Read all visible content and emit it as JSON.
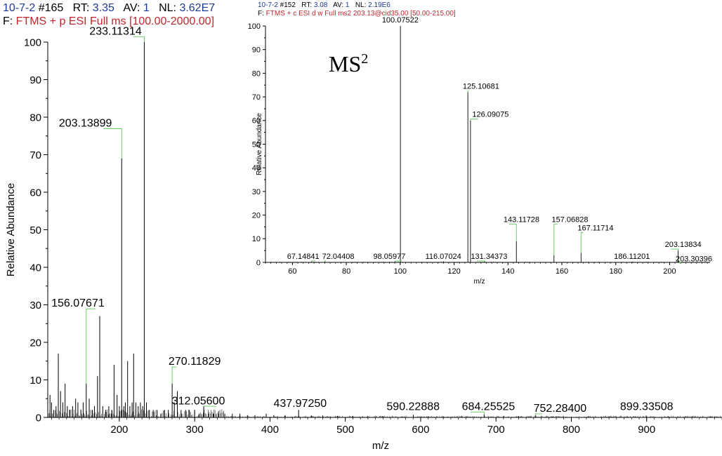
{
  "chart_data": [
    {
      "type": "bar",
      "header": {
        "line1": [
          {
            "text": "10-7-2",
            "color": "#1f3a93"
          },
          {
            "text": " #165",
            "color": "#000000"
          },
          {
            "text": "   RT: ",
            "color": "#000000"
          },
          {
            "text": "3.35",
            "color": "#1f3a93"
          },
          {
            "text": "   AV: ",
            "color": "#000000"
          },
          {
            "text": "1",
            "color": "#1f3a93"
          },
          {
            "text": "   NL: ",
            "color": "#000000"
          },
          {
            "text": "3.62E7",
            "color": "#1f3a93"
          }
        ],
        "line2_prefix": "F: ",
        "line2_rest": "FTMS + p ESI Full ms [100.00-2000.00]",
        "accent": "#c0272d"
      },
      "xlabel": "m/z",
      "ylabel": "Relative Abundance",
      "xlim": [
        105,
        1000
      ],
      "ylim": [
        0,
        100
      ],
      "xticks": [
        200,
        300,
        400,
        500,
        600,
        700,
        800,
        900
      ],
      "yticks": [
        0,
        10,
        20,
        30,
        40,
        50,
        60,
        70,
        80,
        90,
        100
      ],
      "peaks": [
        {
          "x": 108,
          "y": 6
        },
        {
          "x": 110,
          "y": 4
        },
        {
          "x": 113,
          "y": 2
        },
        {
          "x": 116,
          "y": 3
        },
        {
          "x": 119,
          "y": 17
        },
        {
          "x": 122,
          "y": 7
        },
        {
          "x": 125,
          "y": 4
        },
        {
          "x": 128,
          "y": 9
        },
        {
          "x": 131,
          "y": 3
        },
        {
          "x": 134,
          "y": 2
        },
        {
          "x": 138,
          "y": 3
        },
        {
          "x": 142,
          "y": 5
        },
        {
          "x": 145,
          "y": 4
        },
        {
          "x": 149,
          "y": 2
        },
        {
          "x": 152,
          "y": 4
        },
        {
          "x": 156.08,
          "y": 9
        },
        {
          "x": 160,
          "y": 5
        },
        {
          "x": 164,
          "y": 2
        },
        {
          "x": 167,
          "y": 3
        },
        {
          "x": 171,
          "y": 11
        },
        {
          "x": 174,
          "y": 27
        },
        {
          "x": 178,
          "y": 3
        },
        {
          "x": 182,
          "y": 2
        },
        {
          "x": 186,
          "y": 3
        },
        {
          "x": 190,
          "y": 2
        },
        {
          "x": 193,
          "y": 14
        },
        {
          "x": 197,
          "y": 6
        },
        {
          "x": 200,
          "y": 3
        },
        {
          "x": 203.14,
          "y": 69
        },
        {
          "x": 206,
          "y": 3
        },
        {
          "x": 208,
          "y": 4
        },
        {
          "x": 211,
          "y": 15
        },
        {
          "x": 214,
          "y": 3
        },
        {
          "x": 217,
          "y": 4
        },
        {
          "x": 219,
          "y": 17
        },
        {
          "x": 222,
          "y": 4
        },
        {
          "x": 225,
          "y": 3
        },
        {
          "x": 228,
          "y": 4
        },
        {
          "x": 231,
          "y": 3
        },
        {
          "x": 233.11,
          "y": 100
        },
        {
          "x": 236,
          "y": 4
        },
        {
          "x": 240,
          "y": 2
        },
        {
          "x": 245,
          "y": 2
        },
        {
          "x": 250,
          "y": 2
        },
        {
          "x": 255,
          "y": 1
        },
        {
          "x": 260,
          "y": 2
        },
        {
          "x": 265,
          "y": 2
        },
        {
          "x": 270.12,
          "y": 9
        },
        {
          "x": 273,
          "y": 4
        },
        {
          "x": 277,
          "y": 7
        },
        {
          "x": 282,
          "y": 2
        },
        {
          "x": 288,
          "y": 2
        },
        {
          "x": 293,
          "y": 2
        },
        {
          "x": 300,
          "y": 2
        },
        {
          "x": 306,
          "y": 1
        },
        {
          "x": 312.06,
          "y": 3
        },
        {
          "x": 318,
          "y": 1
        },
        {
          "x": 325,
          "y": 1
        },
        {
          "x": 332,
          "y": 1
        },
        {
          "x": 340,
          "y": 1
        },
        {
          "x": 350,
          "y": 1
        },
        {
          "x": 360,
          "y": 1
        },
        {
          "x": 370,
          "y": 0.6
        },
        {
          "x": 380,
          "y": 0.6
        },
        {
          "x": 395,
          "y": 1
        },
        {
          "x": 405,
          "y": 0.6
        },
        {
          "x": 420,
          "y": 0.6
        },
        {
          "x": 437.97,
          "y": 2
        },
        {
          "x": 455,
          "y": 0.5
        },
        {
          "x": 470,
          "y": 0.5
        },
        {
          "x": 490,
          "y": 0.4
        },
        {
          "x": 510,
          "y": 0.4
        },
        {
          "x": 530,
          "y": 0.4
        },
        {
          "x": 550,
          "y": 0.3
        },
        {
          "x": 575,
          "y": 0.3
        },
        {
          "x": 590.23,
          "y": 0.7
        },
        {
          "x": 610,
          "y": 0.3
        },
        {
          "x": 630,
          "y": 0.3
        },
        {
          "x": 655,
          "y": 0.3
        },
        {
          "x": 684.26,
          "y": 0.8
        },
        {
          "x": 710,
          "y": 0.3
        },
        {
          "x": 730,
          "y": 0.3
        },
        {
          "x": 752.28,
          "y": 0.6
        },
        {
          "x": 775,
          "y": 0.2
        },
        {
          "x": 800,
          "y": 0.2
        },
        {
          "x": 822,
          "y": 0.3
        },
        {
          "x": 850,
          "y": 0.2
        },
        {
          "x": 875,
          "y": 0.2
        },
        {
          "x": 899.34,
          "y": 0.5
        },
        {
          "x": 930,
          "y": 0.2
        },
        {
          "x": 960,
          "y": 0.2
        },
        {
          "x": 985,
          "y": 0.2
        }
      ],
      "annotations": [
        {
          "text": "233.11314",
          "x": 233.11,
          "y": 100,
          "label_x": 195,
          "label_y": 102
        },
        {
          "text": "203.13899",
          "x": 203.14,
          "y": 69,
          "label_x": 155,
          "label_y": 77.5
        },
        {
          "text": "156.07671",
          "x": 156.08,
          "y": 9,
          "label_x": 145,
          "label_y": 29.5
        },
        {
          "text": "270.11829",
          "x": 270.12,
          "y": 9,
          "label_x": 300,
          "label_y": 14
        },
        {
          "text": "312.05600",
          "x": 312.06,
          "y": 3,
          "label_x": 305,
          "label_y": 3.5
        },
        {
          "text": "437.97250",
          "x": 437.97,
          "y": 2,
          "label_x": 440,
          "label_y": 2.8
        },
        {
          "text": "590.22888",
          "x": 590.23,
          "y": 0.7,
          "label_x": 590,
          "label_y": 2
        },
        {
          "text": "684.25525",
          "x": 684.26,
          "y": 0.8,
          "label_x": 690,
          "label_y": 2
        },
        {
          "text": "752.28400",
          "x": 752.28,
          "y": 0.6,
          "label_x": 785,
          "label_y": 1.5
        },
        {
          "text": "899.33508",
          "x": 899.34,
          "y": 0.5,
          "label_x": 900,
          "label_y": 2
        }
      ]
    },
    {
      "type": "bar",
      "header": {
        "line1": [
          {
            "text": "10-7-2",
            "color": "#1f3a93"
          },
          {
            "text": " #152",
            "color": "#000000"
          },
          {
            "text": "   RT: ",
            "color": "#000000"
          },
          {
            "text": "3.08",
            "color": "#1f3a93"
          },
          {
            "text": "   AV: ",
            "color": "#000000"
          },
          {
            "text": "1",
            "color": "#1f3a93"
          },
          {
            "text": "   NL: ",
            "color": "#000000"
          },
          {
            "text": "2.19E6",
            "color": "#1f3a93"
          }
        ],
        "line2_prefix": "F: ",
        "line2_rest": "FTMS + c ESI d w Full ms2 203.13@cid35.00 [50.00-215.00]",
        "accent": "#c0272d"
      },
      "title_main": "MS",
      "title_sup": "2",
      "xlabel": "m/z",
      "ylabel": "Relative Abundance",
      "xlim": [
        50,
        215
      ],
      "ylim": [
        0,
        100
      ],
      "xticks": [
        60,
        80,
        100,
        120,
        140,
        160,
        180,
        200
      ],
      "yticks": [
        0,
        10,
        20,
        30,
        40,
        50,
        60,
        70,
        80,
        90,
        100
      ],
      "peaks": [
        {
          "x": 67.15,
          "y": 0.3
        },
        {
          "x": 72.04,
          "y": 0.3
        },
        {
          "x": 98.06,
          "y": 0.4
        },
        {
          "x": 100.08,
          "y": 100
        },
        {
          "x": 116.07,
          "y": 0.4
        },
        {
          "x": 125.11,
          "y": 72
        },
        {
          "x": 126.09,
          "y": 60
        },
        {
          "x": 131.34,
          "y": 0.4
        },
        {
          "x": 143.12,
          "y": 9
        },
        {
          "x": 157.07,
          "y": 3
        },
        {
          "x": 167.12,
          "y": 4
        },
        {
          "x": 186.11,
          "y": 0.3
        },
        {
          "x": 203.14,
          "y": 5
        },
        {
          "x": 203.3,
          "y": 0.4
        }
      ],
      "annotations": [
        {
          "text": "100.07522",
          "x": 100.08,
          "y": 100,
          "label_x": 100,
          "label_y": 101.5
        },
        {
          "text": "125.10681",
          "x": 125.11,
          "y": 72,
          "label_x": 130,
          "label_y": 73.5
        },
        {
          "text": "126.09075",
          "x": 126.09,
          "y": 60,
          "label_x": 133.5,
          "label_y": 61.5
        },
        {
          "text": "143.11728",
          "x": 143.12,
          "y": 9,
          "label_x": 145,
          "label_y": 17
        },
        {
          "text": "157.06828",
          "x": 157.07,
          "y": 3,
          "label_x": 163,
          "label_y": 17
        },
        {
          "text": "167.11714",
          "x": 167.12,
          "y": 4,
          "label_x": 172.5,
          "label_y": 13.5
        },
        {
          "text": "203.13834",
          "x": 203.14,
          "y": 5,
          "label_x": 205,
          "label_y": 6.5
        },
        {
          "text": "67.14841",
          "x": 67.15,
          "y": 0.3,
          "label_x": 64,
          "label_y": 1.5
        },
        {
          "text": "72.04408",
          "x": 72.04,
          "y": 0.3,
          "label_x": 77,
          "label_y": 1.5
        },
        {
          "text": "98.05977",
          "x": 98.06,
          "y": 0.4,
          "label_x": 96,
          "label_y": 1.5
        },
        {
          "text": "116.07024",
          "x": 116.07,
          "y": 0.4,
          "label_x": 116,
          "label_y": 1.5
        },
        {
          "text": "131.34373",
          "x": 131.34,
          "y": 0.4,
          "label_x": 133,
          "label_y": 1.5
        },
        {
          "text": "186.11201",
          "x": 186.11,
          "y": 0.3,
          "label_x": 186,
          "label_y": 1.5
        },
        {
          "text": "203.30396",
          "x": 203.3,
          "y": 0.4,
          "label_x": 209,
          "label_y": 0.5
        }
      ]
    }
  ]
}
